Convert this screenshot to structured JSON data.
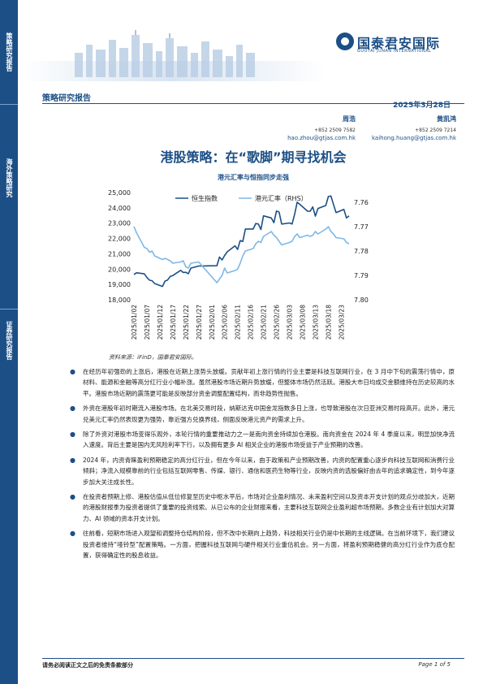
{
  "sidebar": {
    "sections": [
      "策略研究报告",
      "海外策略研究",
      "证券研究报告"
    ]
  },
  "header": {
    "logo_cn": "国泰君安国际",
    "logo_en": "GUOTAI JUNAN INTERNATIONAL",
    "doc_type": "策略研究报告",
    "date": "2025年3月28日"
  },
  "analysts": [
    {
      "name": "周浩",
      "phone": "+852 2509 7582",
      "email": "hao.zhou@gtjas.com.hk"
    },
    {
      "name": "黄凯鸿",
      "phone": "+852 2509 7214",
      "email": "kaihong.huang@gtjas.com.hk"
    }
  ],
  "title": "港股策略：在“歌脚”期寻找机会",
  "chart_data": {
    "type": "line",
    "title": "港元汇率与恒指同步走强",
    "x": [
      "2025/01/02",
      "2025/01/07",
      "2025/01/12",
      "2025/01/17",
      "2025/01/22",
      "2025/01/27",
      "2025/02/01",
      "2025/02/06",
      "2025/02/11",
      "2025/02/16",
      "2025/02/21",
      "2025/02/26",
      "2025/03/03",
      "2025/03/08",
      "2025/03/13",
      "2025/03/18",
      "2025/03/23"
    ],
    "left_axis": {
      "ticks": [
        "25,000",
        "24,000",
        "23,000",
        "22,000",
        "21,000",
        "20,000",
        "19,000",
        "18,000"
      ],
      "ylim": [
        18000,
        25000
      ]
    },
    "right_axis": {
      "ticks": [
        "7.76",
        "7.77",
        "7.78",
        "7.79",
        "7.80"
      ],
      "ylim": [
        7.76,
        7.8
      ],
      "inverted": true
    },
    "legend_position": "top",
    "series": [
      {
        "name": "恒生指数",
        "axis": "left",
        "color": "#1c4f86",
        "points": [
          [
            "2025/01/02",
            19650
          ],
          [
            "2025/01/03",
            19760
          ],
          [
            "2025/01/06",
            19690
          ],
          [
            "2025/01/07",
            19450
          ],
          [
            "2025/01/08",
            19280
          ],
          [
            "2025/01/09",
            19240
          ],
          [
            "2025/01/10",
            19060
          ],
          [
            "2025/01/13",
            18870
          ],
          [
            "2025/01/14",
            19220
          ],
          [
            "2025/01/15",
            19290
          ],
          [
            "2025/01/16",
            19520
          ],
          [
            "2025/01/17",
            19580
          ],
          [
            "2025/01/20",
            19920
          ],
          [
            "2025/01/21",
            19780
          ],
          [
            "2025/01/22",
            19790
          ],
          [
            "2025/01/23",
            19700
          ],
          [
            "2025/01/24",
            20070
          ],
          [
            "2025/01/27",
            20200
          ],
          [
            "2025/02/03",
            20220
          ],
          [
            "2025/02/04",
            20790
          ],
          [
            "2025/02/05",
            20600
          ],
          [
            "2025/02/06",
            20890
          ],
          [
            "2025/02/07",
            21130
          ],
          [
            "2025/02/10",
            21520
          ],
          [
            "2025/02/11",
            21290
          ],
          [
            "2025/02/12",
            21860
          ],
          [
            "2025/02/13",
            21810
          ],
          [
            "2025/02/14",
            22620
          ],
          [
            "2025/02/17",
            22620
          ],
          [
            "2025/02/18",
            22980
          ],
          [
            "2025/02/19",
            22940
          ],
          [
            "2025/02/20",
            22580
          ],
          [
            "2025/02/21",
            23480
          ],
          [
            "2025/02/24",
            23340
          ],
          [
            "2025/02/25",
            23030
          ],
          [
            "2025/02/26",
            23790
          ],
          [
            "2025/02/27",
            23720
          ],
          [
            "2025/02/28",
            22940
          ],
          [
            "2025/03/03",
            23010
          ],
          [
            "2025/03/04",
            22940
          ],
          [
            "2025/03/05",
            23590
          ],
          [
            "2025/03/06",
            24370
          ],
          [
            "2025/03/07",
            24230
          ],
          [
            "2025/03/10",
            23780
          ],
          [
            "2025/03/11",
            23780
          ],
          [
            "2025/03/12",
            24060
          ],
          [
            "2025/03/13",
            23460
          ],
          [
            "2025/03/14",
            23960
          ],
          [
            "2025/03/17",
            24150
          ],
          [
            "2025/03/18",
            24740
          ],
          [
            "2025/03/19",
            24770
          ],
          [
            "2025/03/20",
            24220
          ],
          [
            "2025/03/21",
            23690
          ],
          [
            "2025/03/24",
            23900
          ],
          [
            "2025/03/25",
            23340
          ],
          [
            "2025/03/26",
            23480
          ]
        ]
      },
      {
        "name": "港元汇率（RHS）",
        "axis": "right",
        "color": "#7fb8e6",
        "points": [
          [
            "2025/01/02",
            7.77
          ],
          [
            "2025/01/03",
            7.7725
          ],
          [
            "2025/01/06",
            7.7785
          ],
          [
            "2025/01/07",
            7.779
          ],
          [
            "2025/01/08",
            7.7805
          ],
          [
            "2025/01/09",
            7.78
          ],
          [
            "2025/01/10",
            7.782
          ],
          [
            "2025/01/13",
            7.7835
          ],
          [
            "2025/01/14",
            7.783
          ],
          [
            "2025/01/15",
            7.7835
          ],
          [
            "2025/01/16",
            7.784
          ],
          [
            "2025/01/17",
            7.785
          ],
          [
            "2025/01/20",
            7.7845
          ],
          [
            "2025/01/21",
            7.784
          ],
          [
            "2025/01/22",
            7.7865
          ],
          [
            "2025/01/23",
            7.787
          ],
          [
            "2025/01/24",
            7.785
          ],
          [
            "2025/01/27",
            7.7845
          ],
          [
            "2025/02/03",
            7.793
          ],
          [
            "2025/02/04",
            7.7915
          ],
          [
            "2025/02/05",
            7.79
          ],
          [
            "2025/02/06",
            7.787
          ],
          [
            "2025/02/07",
            7.789
          ],
          [
            "2025/02/10",
            7.788
          ],
          [
            "2025/02/11",
            7.7875
          ],
          [
            "2025/02/12",
            7.785
          ],
          [
            "2025/02/13",
            7.782
          ],
          [
            "2025/02/14",
            7.78
          ],
          [
            "2025/02/17",
            7.779
          ],
          [
            "2025/02/18",
            7.777
          ],
          [
            "2025/02/19",
            7.776
          ],
          [
            "2025/02/20",
            7.7765
          ],
          [
            "2025/02/21",
            7.774
          ],
          [
            "2025/02/24",
            7.772
          ],
          [
            "2025/02/25",
            7.7735
          ],
          [
            "2025/02/26",
            7.7745
          ],
          [
            "2025/02/27",
            7.776
          ],
          [
            "2025/02/28",
            7.7775
          ],
          [
            "2025/03/03",
            7.7765
          ],
          [
            "2025/03/04",
            7.776
          ],
          [
            "2025/03/05",
            7.774
          ],
          [
            "2025/03/06",
            7.773
          ],
          [
            "2025/03/07",
            7.7745
          ],
          [
            "2025/03/10",
            7.7735
          ],
          [
            "2025/03/11",
            7.774
          ],
          [
            "2025/03/12",
            7.7735
          ],
          [
            "2025/03/13",
            7.772
          ],
          [
            "2025/03/14",
            7.773
          ],
          [
            "2025/03/17",
            7.771
          ],
          [
            "2025/03/18",
            7.77
          ],
          [
            "2025/03/19",
            7.772
          ],
          [
            "2025/03/20",
            7.773
          ],
          [
            "2025/03/21",
            7.7745
          ],
          [
            "2025/03/24",
            7.775
          ],
          [
            "2025/03/25",
            7.7765
          ],
          [
            "2025/03/26",
            7.777
          ]
        ]
      }
    ]
  },
  "source": "资料来源：iFinD，国泰君安国际。",
  "bullets": [
    "在经历年初强劲的上涨后，港股在近期上涨势头放缓。贡献年初上涨行情的行业主要是科技互联网行业，在 3 月中下旬的震荡行情中，原材料、能源和金融等高分红行业小幅补涨。虽然港股市场近期升势放缓，但整体市场仍然活跃。港股大市日均成交金额维持在历史较高的水平。港股市场近期的震荡更可能是反映部分资金调整配置结构，而非趋势性抛售。",
    "外资在港股年初时期流入港股市场。在北美交易时段，纳斯达克中国金龙指数多日上涨，也导致港股在次日亚洲交易时段高开。此外，港元兑美元汇率仍然表现更为强势，靠近强方兑换界线，侧面反映港元资产的需求上升。",
    "除了外资对港股市场变得乐观外，本轮行情的重要推动力之一是南向资金持续加仓港股。南向资金在 2024 年 4 季度以来，明显加快净流入速度。背后主要是国内无风险利率下行，以及拥有更多 AI 相关企业的港股市场受益于产业预期的改善。",
    "2024 年，内资青睐盈利预期稳定的高分红行业，但在今年以来，由于政策和产业预期改善，内资的配置重心逐步向科技互联网和消费行业倾斜；净流入规模靠前的行业包括互联网零售、传媒、银行、通信和医药生物等行业，反映内资的选股偏好由去年的追求确定性，到今年逐步加大关注成长性。",
    "在投资者预期上修、港股估值从低位修复至历史中枢水平后，市场对企业盈利情况、未来盈利空间以及资本开支计划的观点分歧加大，近期的港股财报季为投资者提供了重要的投资线索。从已公布的企业财报来看，主要科技互联网企业盈利超市场预期，多数企业有计划加大对算力、AI 领域的资本开支计划。",
    "往前看，短期市场进入观望和调整持仓结构阶段，但不改中长期向上趋势，科技相关行业仍是中长期的主线逻辑。在当前环境下，我们建议投资者维持“哑铃型”配置策略。一方面，把握科技互联网与硬件相关行业重估机会。另一方面，将盈利预期稳健的高分红行业作为底仓配置，获得确定性的股息收益。"
  ],
  "footer": {
    "disclaimer": "请务必阅读正文之后的免责条款部分",
    "page": "Page 1 of 5"
  }
}
